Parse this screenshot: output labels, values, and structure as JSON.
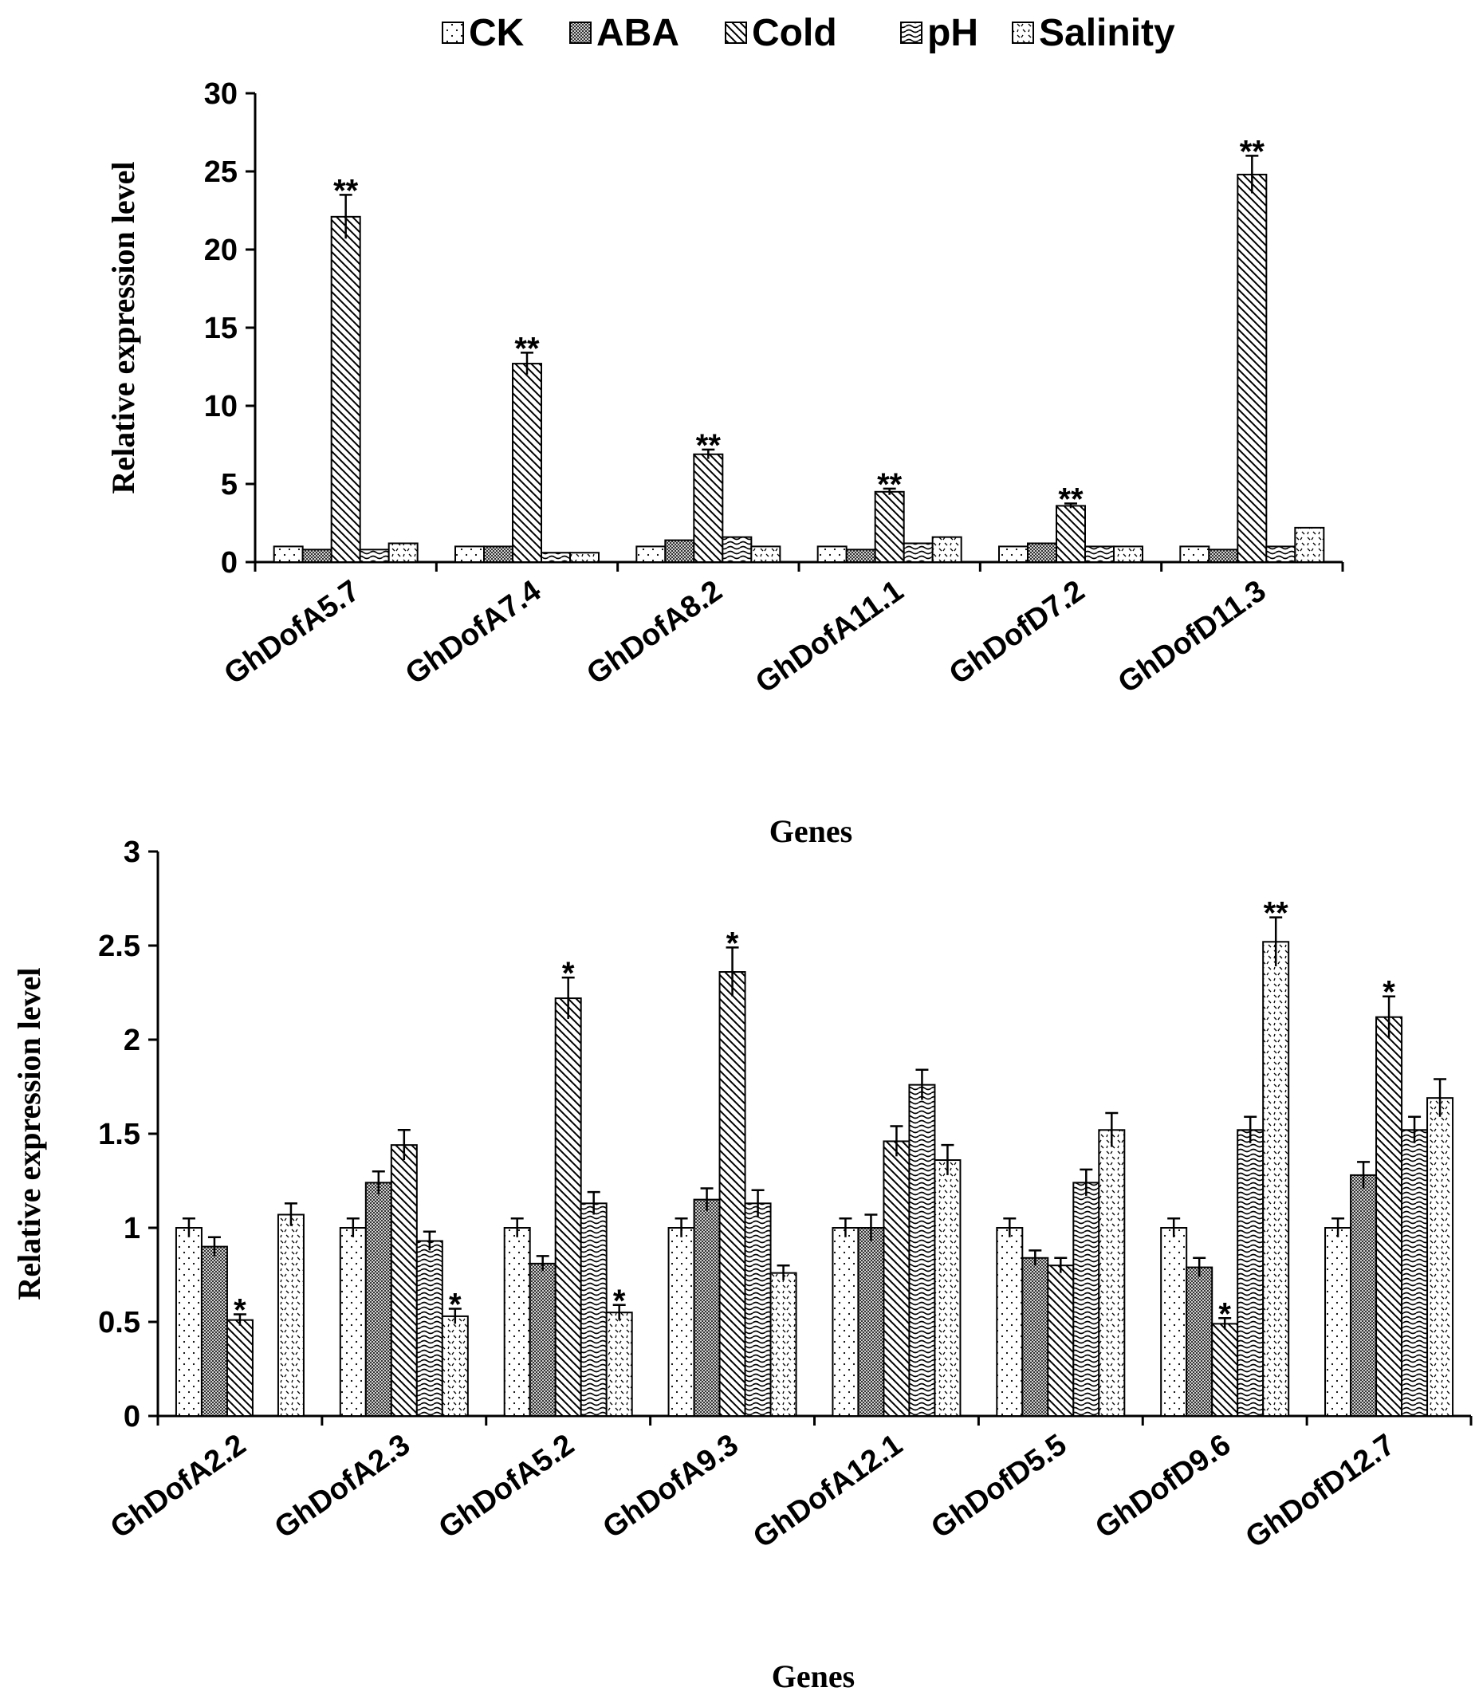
{
  "chart_data": [
    {
      "type": "bar",
      "series_names": [
        "CK",
        "ABA",
        "Cold",
        "pH",
        "Salinity"
      ],
      "categories": [
        "GhDofA5.7",
        "GhDofA7.4",
        "GhDofA8.2",
        "GhDofA11.1",
        "GhDofD7.2",
        "GhDofD11.3"
      ],
      "series": [
        {
          "name": "CK",
          "values": [
            1.0,
            1.0,
            1.0,
            1.0,
            1.0,
            1.0
          ]
        },
        {
          "name": "ABA",
          "values": [
            0.8,
            1.0,
            1.4,
            0.8,
            1.2,
            0.8
          ]
        },
        {
          "name": "Cold",
          "values": [
            22.1,
            12.7,
            6.9,
            4.5,
            3.6,
            24.8
          ]
        },
        {
          "name": "pH",
          "values": [
            0.8,
            0.6,
            1.6,
            1.2,
            1.0,
            1.0
          ]
        },
        {
          "name": "Salinity",
          "values": [
            1.2,
            0.6,
            1.0,
            1.6,
            1.0,
            2.2
          ]
        }
      ],
      "errors": [
        [
          0,
          0,
          0,
          0,
          0,
          0
        ],
        [
          0,
          0,
          0,
          0,
          0,
          0
        ],
        [
          1.4,
          0.7,
          0.3,
          0.2,
          0.15,
          1.2
        ],
        [
          0,
          0,
          0,
          0,
          0,
          0
        ],
        [
          0,
          0,
          0,
          0,
          0,
          0
        ]
      ],
      "annotations": [
        {
          "category": 0,
          "series": 2,
          "text": "**"
        },
        {
          "category": 1,
          "series": 2,
          "text": "**"
        },
        {
          "category": 2,
          "series": 2,
          "text": "**"
        },
        {
          "category": 3,
          "series": 2,
          "text": "**"
        },
        {
          "category": 4,
          "series": 2,
          "text": "**"
        },
        {
          "category": 5,
          "series": 2,
          "text": "**"
        }
      ],
      "ylim": [
        0,
        30
      ],
      "yticks": [
        "0",
        "5",
        "10",
        "15",
        "20",
        "25",
        "30"
      ],
      "ylabel": "Relative expression level",
      "xlabel": "Genes",
      "legend_position": "top",
      "grid": false
    },
    {
      "type": "bar",
      "series_names": [
        "CK",
        "ABA",
        "Cold",
        "pH",
        "Salinity"
      ],
      "categories": [
        "GhDofA2.2",
        "GhDofA2.3",
        "GhDofA5.2",
        "GhDofA9.3",
        "GhDofA12.1",
        "GhDofD5.5",
        "GhDofD9.6",
        "GhDofD12.7"
      ],
      "series": [
        {
          "name": "CK",
          "values": [
            1.0,
            1.0,
            1.0,
            1.0,
            1.0,
            1.0,
            1.0,
            1.0
          ]
        },
        {
          "name": "ABA",
          "values": [
            0.9,
            1.24,
            0.81,
            1.15,
            1.0,
            0.84,
            0.79,
            1.28
          ]
        },
        {
          "name": "Cold",
          "values": [
            0.51,
            1.44,
            2.22,
            2.36,
            1.46,
            0.8,
            0.49,
            2.12
          ]
        },
        {
          "name": "pH",
          "values": [
            0,
            0.93,
            1.13,
            1.13,
            1.76,
            1.24,
            1.52,
            1.52
          ]
        },
        {
          "name": "Salinity",
          "values": [
            1.07,
            0.53,
            0.55,
            0.76,
            1.36,
            1.52,
            2.52,
            1.69
          ]
        }
      ],
      "errors": [
        [
          0.05,
          0.05,
          0.05,
          0.05,
          0.05,
          0.05,
          0.05,
          0.05
        ],
        [
          0.05,
          0.06,
          0.04,
          0.06,
          0.07,
          0.04,
          0.05,
          0.07
        ],
        [
          0.03,
          0.08,
          0.11,
          0.13,
          0.08,
          0.04,
          0.03,
          0.11
        ],
        [
          0,
          0.05,
          0.06,
          0.07,
          0.08,
          0.07,
          0.07,
          0.07
        ],
        [
          0.06,
          0.04,
          0.04,
          0.04,
          0.08,
          0.09,
          0.13,
          0.1
        ]
      ],
      "annotations": [
        {
          "category": 0,
          "series": 2,
          "text": "*"
        },
        {
          "category": 1,
          "series": 4,
          "text": "*"
        },
        {
          "category": 2,
          "series": 2,
          "text": "*"
        },
        {
          "category": 2,
          "series": 4,
          "text": "*"
        },
        {
          "category": 3,
          "series": 2,
          "text": "*"
        },
        {
          "category": 6,
          "series": 2,
          "text": "*"
        },
        {
          "category": 6,
          "series": 4,
          "text": "**"
        },
        {
          "category": 7,
          "series": 2,
          "text": "*"
        }
      ],
      "ylim": [
        0,
        3
      ],
      "yticks": [
        "0",
        "0.5",
        "1",
        "1.5",
        "2",
        "2.5",
        "3"
      ],
      "ylabel": "Relative expression level",
      "xlabel": "Genes",
      "grid": false
    }
  ]
}
